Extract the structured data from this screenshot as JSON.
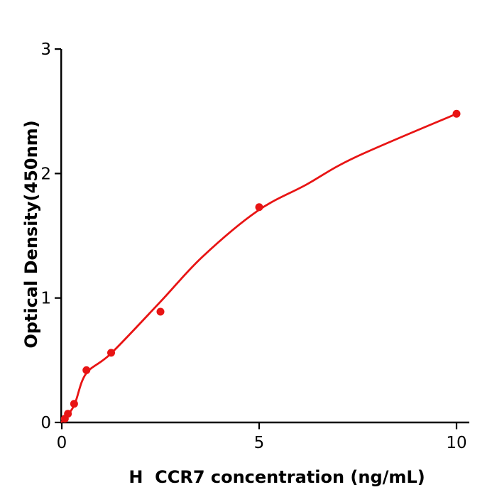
{
  "figure": {
    "background": "#ffffff",
    "axis_color": "#000000",
    "accent_red": "#e81414"
  },
  "chart_data": {
    "type": "scatter",
    "title": "",
    "xlabel": "H  CCR7 concentration (ng/mL)",
    "ylabel": "Optical Density(450nm)",
    "xlim": [
      0,
      10.35
    ],
    "ylim": [
      0,
      3
    ],
    "grid": false,
    "legend": "none",
    "x_ticks": {
      "values": [
        0,
        5,
        10
      ],
      "labels": [
        "0",
        "5",
        "10"
      ]
    },
    "y_ticks": {
      "values": [
        0,
        1,
        2,
        3
      ],
      "labels": [
        "0",
        "1",
        "2",
        "3"
      ]
    },
    "series": [
      {
        "name": "standard-points",
        "type": "scatter",
        "color": "#e81414",
        "marker_radius": 5.5,
        "points": [
          [
            0.078,
            0.03
          ],
          [
            0.156,
            0.07
          ],
          [
            0.3125,
            0.15
          ],
          [
            0.625,
            0.42
          ],
          [
            1.25,
            0.56
          ],
          [
            2.5,
            0.89
          ],
          [
            5,
            1.73
          ],
          [
            10,
            2.48
          ]
        ]
      },
      {
        "name": "fitted-curve",
        "type": "line",
        "color": "#e81414",
        "line_width": 2.8,
        "points": [
          [
            0,
            0.005
          ],
          [
            0.31,
            0.135
          ],
          [
            0.61,
            0.39
          ],
          [
            1.25,
            0.555
          ],
          [
            2.5,
            0.97
          ],
          [
            3.56,
            1.33
          ],
          [
            4.96,
            1.7
          ],
          [
            6.19,
            1.91
          ],
          [
            7.43,
            2.13
          ],
          [
            10,
            2.48
          ]
        ]
      }
    ]
  }
}
